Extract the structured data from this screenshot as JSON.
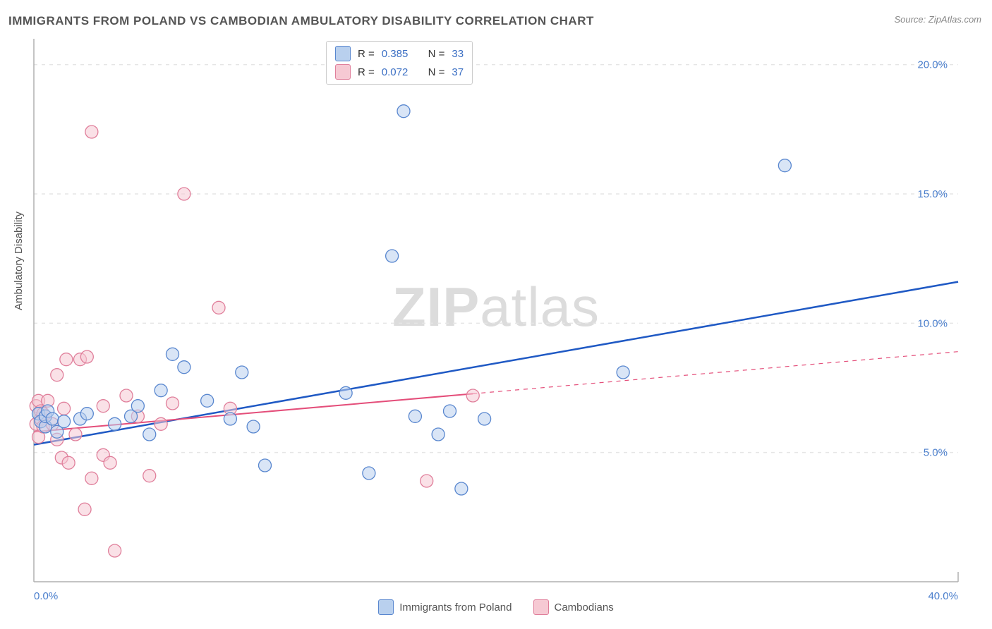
{
  "title": "IMMIGRANTS FROM POLAND VS CAMBODIAN AMBULATORY DISABILITY CORRELATION CHART",
  "source": "Source: ZipAtlas.com",
  "y_axis_title": "Ambulatory Disability",
  "watermark": {
    "bold": "ZIP",
    "rest": "atlas"
  },
  "chart": {
    "type": "scatter",
    "xlim": [
      0,
      40
    ],
    "ylim": [
      0,
      21
    ],
    "x_ticks": [
      {
        "v": 0,
        "label": "0.0%"
      },
      {
        "v": 40,
        "label": "40.0%"
      }
    ],
    "y_ticks": [
      {
        "v": 5,
        "label": "5.0%"
      },
      {
        "v": 10,
        "label": "10.0%"
      },
      {
        "v": 15,
        "label": "15.0%"
      },
      {
        "v": 20,
        "label": "20.0%"
      }
    ],
    "grid_color": "#e5e5e5",
    "axis_color": "#b0b0b0",
    "background_color": "#ffffff",
    "marker_radius": 9,
    "marker_opacity": 0.55,
    "marker_stroke_width": 1.3,
    "series": [
      {
        "name": "Immigrants from Poland",
        "fill": "#b9d0ee",
        "stroke": "#5987cf",
        "trend_color": "#1f59c4",
        "trend_width": 2.5,
        "trend_solid_to_x": 40,
        "R": "0.385",
        "N": "33",
        "points": [
          [
            0.2,
            6.5
          ],
          [
            0.3,
            6.2
          ],
          [
            0.5,
            6.0
          ],
          [
            0.5,
            6.4
          ],
          [
            0.6,
            6.6
          ],
          [
            0.8,
            6.3
          ],
          [
            1.0,
            5.8
          ],
          [
            1.3,
            6.2
          ],
          [
            2.0,
            6.3
          ],
          [
            2.3,
            6.5
          ],
          [
            3.5,
            6.1
          ],
          [
            4.2,
            6.4
          ],
          [
            4.5,
            6.8
          ],
          [
            5.0,
            5.7
          ],
          [
            5.5,
            7.4
          ],
          [
            6.0,
            8.8
          ],
          [
            6.5,
            8.3
          ],
          [
            7.5,
            7.0
          ],
          [
            8.5,
            6.3
          ],
          [
            9.0,
            8.1
          ],
          [
            9.5,
            6.0
          ],
          [
            10.0,
            4.5
          ],
          [
            13.5,
            7.3
          ],
          [
            14.5,
            4.2
          ],
          [
            15.5,
            12.6
          ],
          [
            16.5,
            6.4
          ],
          [
            17.5,
            5.7
          ],
          [
            18.0,
            6.6
          ],
          [
            18.5,
            3.6
          ],
          [
            19.5,
            6.3
          ],
          [
            16.0,
            18.2
          ],
          [
            25.5,
            8.1
          ],
          [
            32.5,
            16.1
          ]
        ],
        "trend": {
          "x1": 0,
          "y1": 5.3,
          "x2": 40,
          "y2": 11.6
        }
      },
      {
        "name": "Cambodians",
        "fill": "#f6c9d3",
        "stroke": "#e07f9b",
        "trend_color": "#e44e7a",
        "trend_width": 2,
        "trend_solid_to_x": 19,
        "R": "0.072",
        "N": "37",
        "points": [
          [
            0.1,
            6.1
          ],
          [
            0.1,
            6.8
          ],
          [
            0.2,
            5.6
          ],
          [
            0.2,
            7.0
          ],
          [
            0.3,
            6.3
          ],
          [
            0.3,
            6.6
          ],
          [
            0.4,
            6.0
          ],
          [
            0.4,
            6.5
          ],
          [
            0.5,
            6.4
          ],
          [
            0.6,
            7.0
          ],
          [
            0.8,
            6.1
          ],
          [
            1.0,
            5.5
          ],
          [
            1.0,
            8.0
          ],
          [
            1.2,
            4.8
          ],
          [
            1.3,
            6.7
          ],
          [
            1.4,
            8.6
          ],
          [
            1.5,
            4.6
          ],
          [
            1.8,
            5.7
          ],
          [
            2.0,
            8.6
          ],
          [
            2.2,
            2.8
          ],
          [
            2.3,
            8.7
          ],
          [
            2.5,
            4.0
          ],
          [
            2.5,
            17.4
          ],
          [
            3.0,
            6.8
          ],
          [
            3.0,
            4.9
          ],
          [
            3.3,
            4.6
          ],
          [
            3.5,
            1.2
          ],
          [
            4.0,
            7.2
          ],
          [
            4.5,
            6.4
          ],
          [
            5.0,
            4.1
          ],
          [
            5.5,
            6.1
          ],
          [
            6.0,
            6.9
          ],
          [
            6.5,
            15.0
          ],
          [
            8.0,
            10.6
          ],
          [
            8.5,
            6.7
          ],
          [
            17.0,
            3.9
          ],
          [
            19.0,
            7.2
          ]
        ],
        "trend": {
          "x1": 0,
          "y1": 5.8,
          "x2": 40,
          "y2": 8.9
        }
      }
    ]
  },
  "legend_top": [
    {
      "swatch_fill": "#b9d0ee",
      "swatch_stroke": "#5987cf",
      "r_label": "R =",
      "r_val": "0.385",
      "n_label": "N =",
      "n_val": "33"
    },
    {
      "swatch_fill": "#f6c9d3",
      "swatch_stroke": "#e07f9b",
      "r_label": "R =",
      "r_val": "0.072",
      "n_label": "N =",
      "n_val": "37"
    }
  ],
  "legend_bottom": [
    {
      "swatch_fill": "#b9d0ee",
      "swatch_stroke": "#5987cf",
      "label": "Immigrants from Poland"
    },
    {
      "swatch_fill": "#f6c9d3",
      "swatch_stroke": "#e07f9b",
      "label": "Cambodians"
    }
  ]
}
